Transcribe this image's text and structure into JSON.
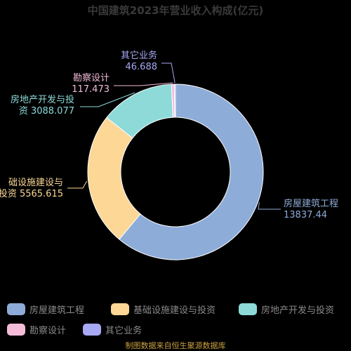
{
  "chart_data": {
    "type": "pie",
    "title": "中国建筑2023年营业收入构成(亿元)",
    "slices": [
      {
        "name": "房屋建筑工程",
        "value": 13837.44,
        "value_label": "13837.44",
        "color": "#8eacd8",
        "label_lines": [
          "房屋建筑工程",
          "13837.44"
        ]
      },
      {
        "name": "基础设施建设与投资",
        "value": 5565.615,
        "value_label": "5565.615",
        "color": "#fdd795",
        "label_lines": [
          "础设施建设与",
          "投资 5565.615"
        ]
      },
      {
        "name": "房地产开发与投资",
        "value": 3088.077,
        "value_label": "3088.077",
        "color": "#8ddad9",
        "label_lines": [
          "房地产开发与投",
          "资 3088.077"
        ]
      },
      {
        "name": "勘察设计",
        "value": 117.473,
        "value_label": "117.473",
        "color": "#f4bcd9",
        "label_lines": [
          "勘察设计",
          "117.473"
        ]
      },
      {
        "name": "其它业务",
        "value": 46.688,
        "value_label": "46.688",
        "color": "#a7a9f4",
        "label_lines": [
          "其它业务",
          "46.688"
        ]
      }
    ],
    "legend_position": "bottom",
    "donut": true
  },
  "source": "制图数据来自恒生聚源数据库"
}
